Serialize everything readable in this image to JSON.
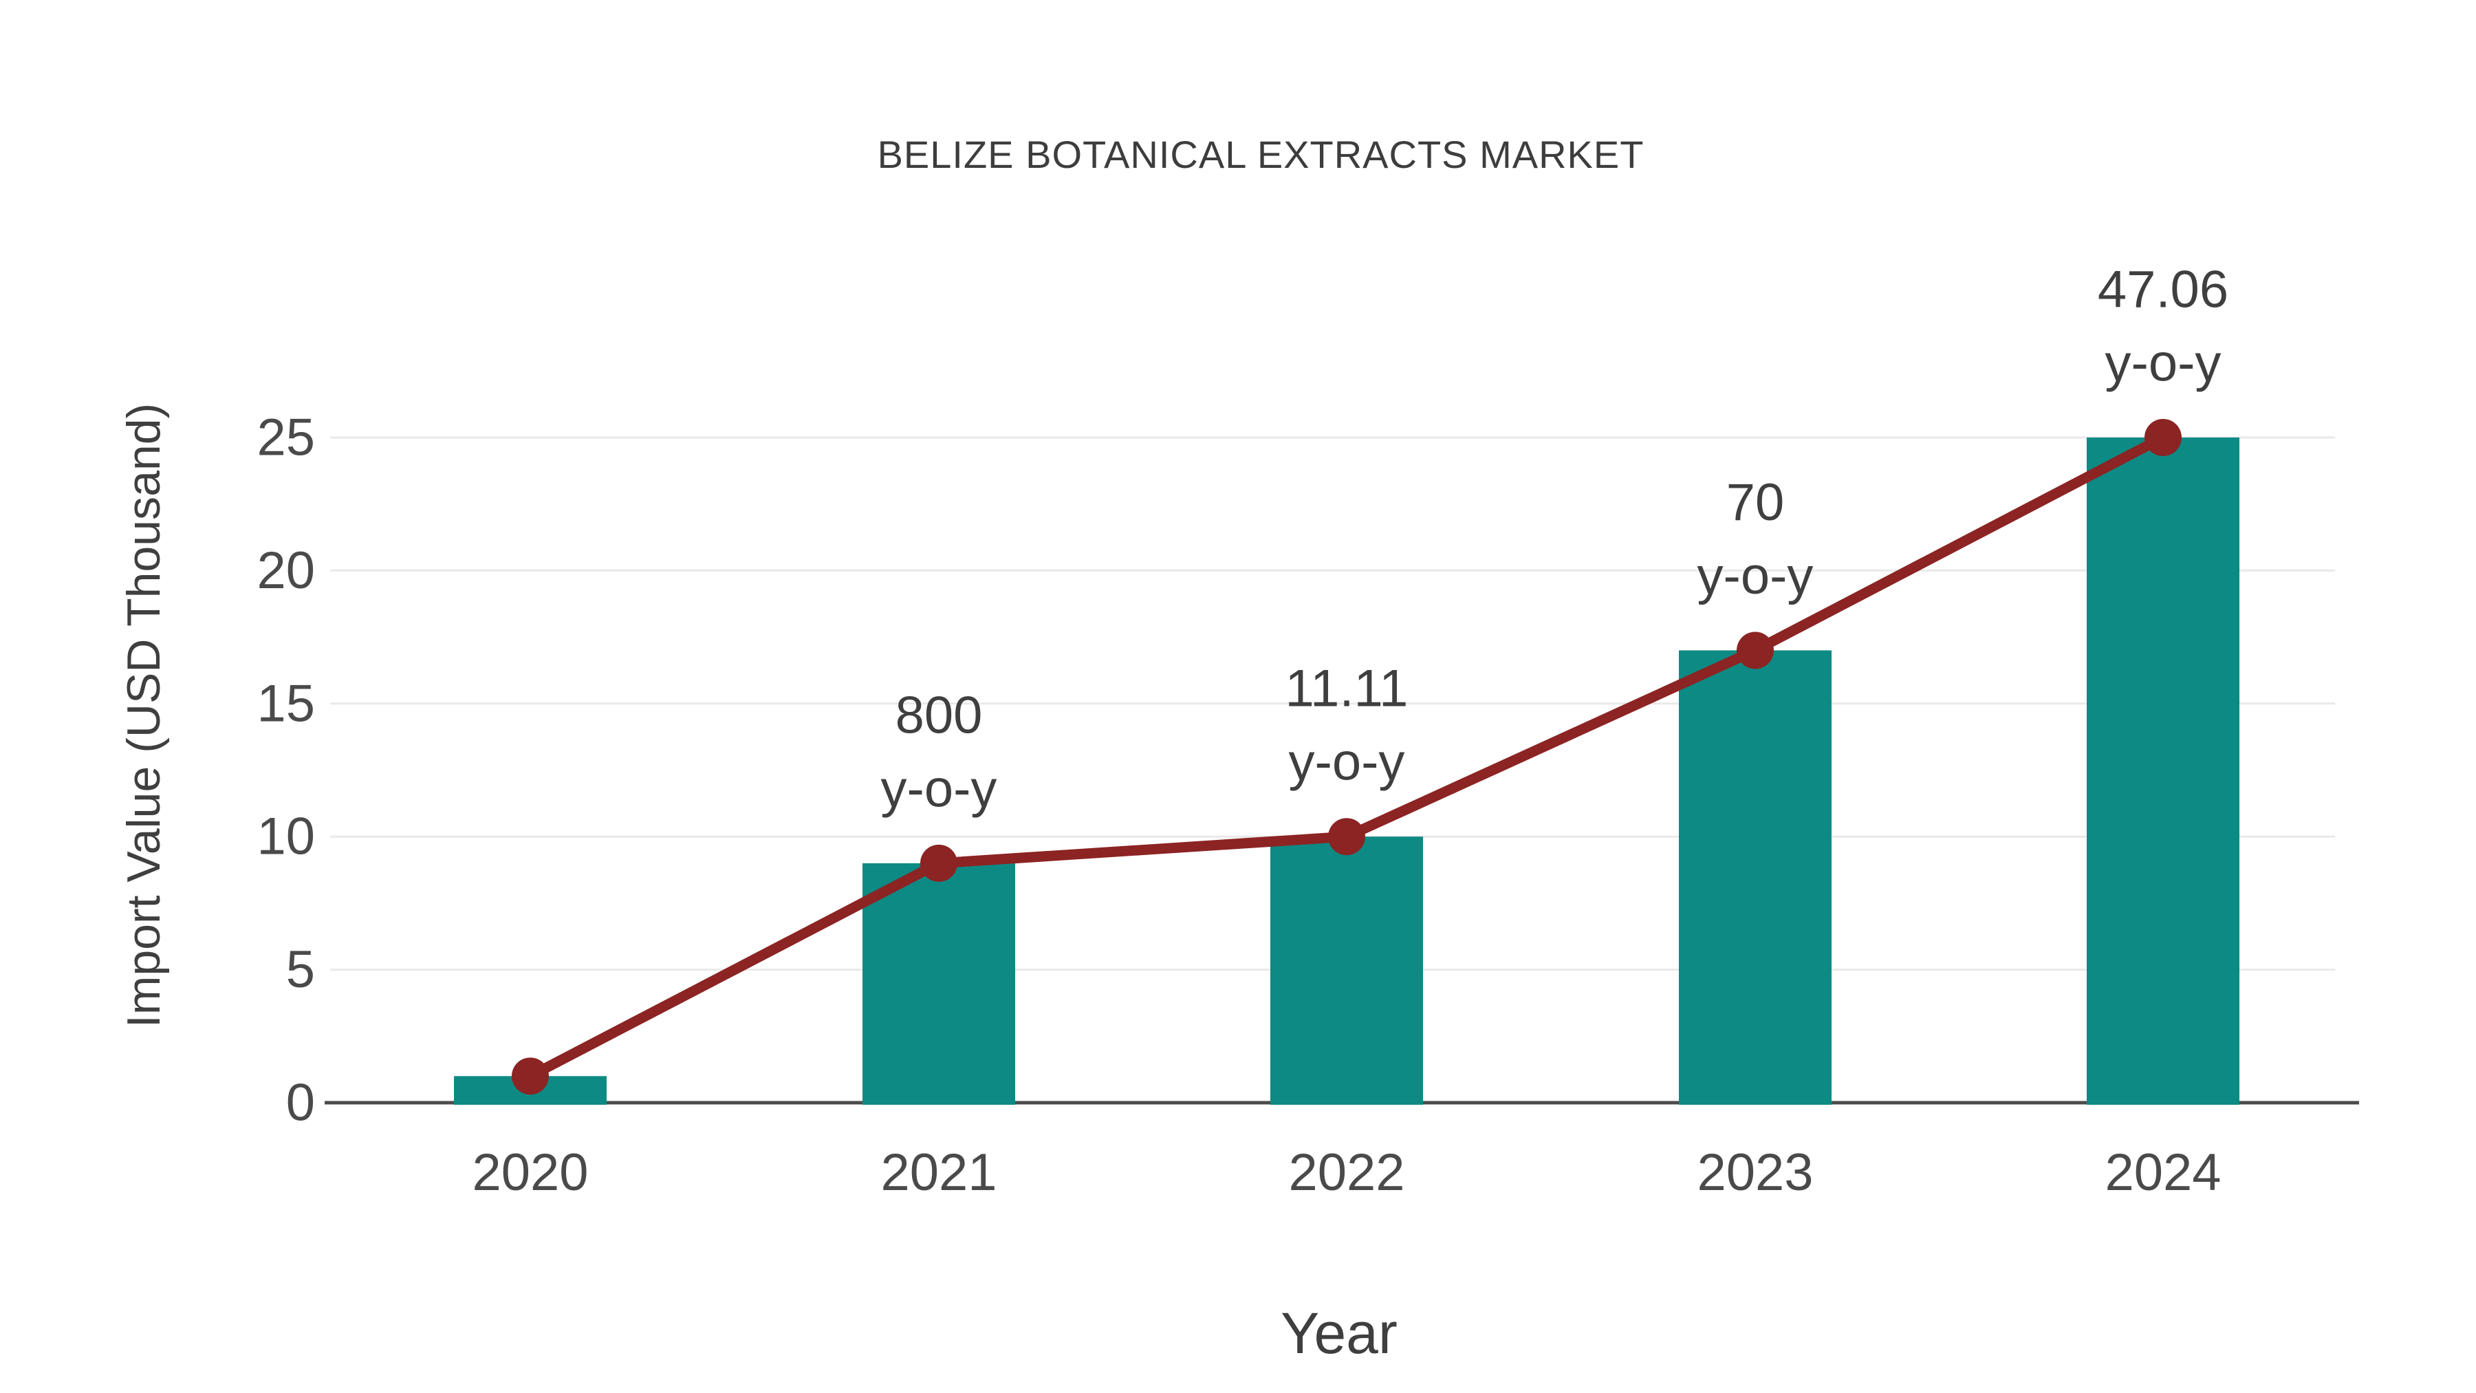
{
  "chart_data": {
    "type": "bar",
    "subtype": "bar-line-combo",
    "title": "BELIZE BOTANICAL EXTRACTS MARKET",
    "xlabel": "Year",
    "ylabel": "Import Value (USD Thousand)",
    "categories": [
      "2020",
      "2021",
      "2022",
      "2023",
      "2024"
    ],
    "series": [
      {
        "name": "Import Value (USD Thousand)",
        "type": "bar",
        "color": "#0D8A84",
        "values": [
          1,
          9,
          10,
          17,
          25
        ]
      },
      {
        "name": "y-o-y growth",
        "type": "line",
        "color": "#8B2423",
        "plotted_values": [
          1,
          9,
          10,
          17,
          25
        ],
        "point_labels": [
          null,
          "800",
          "11.11",
          "70",
          "47.06"
        ],
        "point_label_suffix": "y-o-y"
      }
    ],
    "yticks": [
      0,
      5,
      10,
      15,
      20,
      25
    ],
    "ylim": [
      0,
      26
    ],
    "grid": "horizontal",
    "legend_position": "none",
    "colors": {
      "bar": "#0D8A84",
      "line": "#8B2423",
      "gridline": "#e9e9e9",
      "axis_line": "#4b4b4b",
      "title_text": "#3d3d3d",
      "tick_text": "#4a4a4a",
      "annotation_text": "#3f3f3f",
      "background": "#ffffff"
    }
  }
}
